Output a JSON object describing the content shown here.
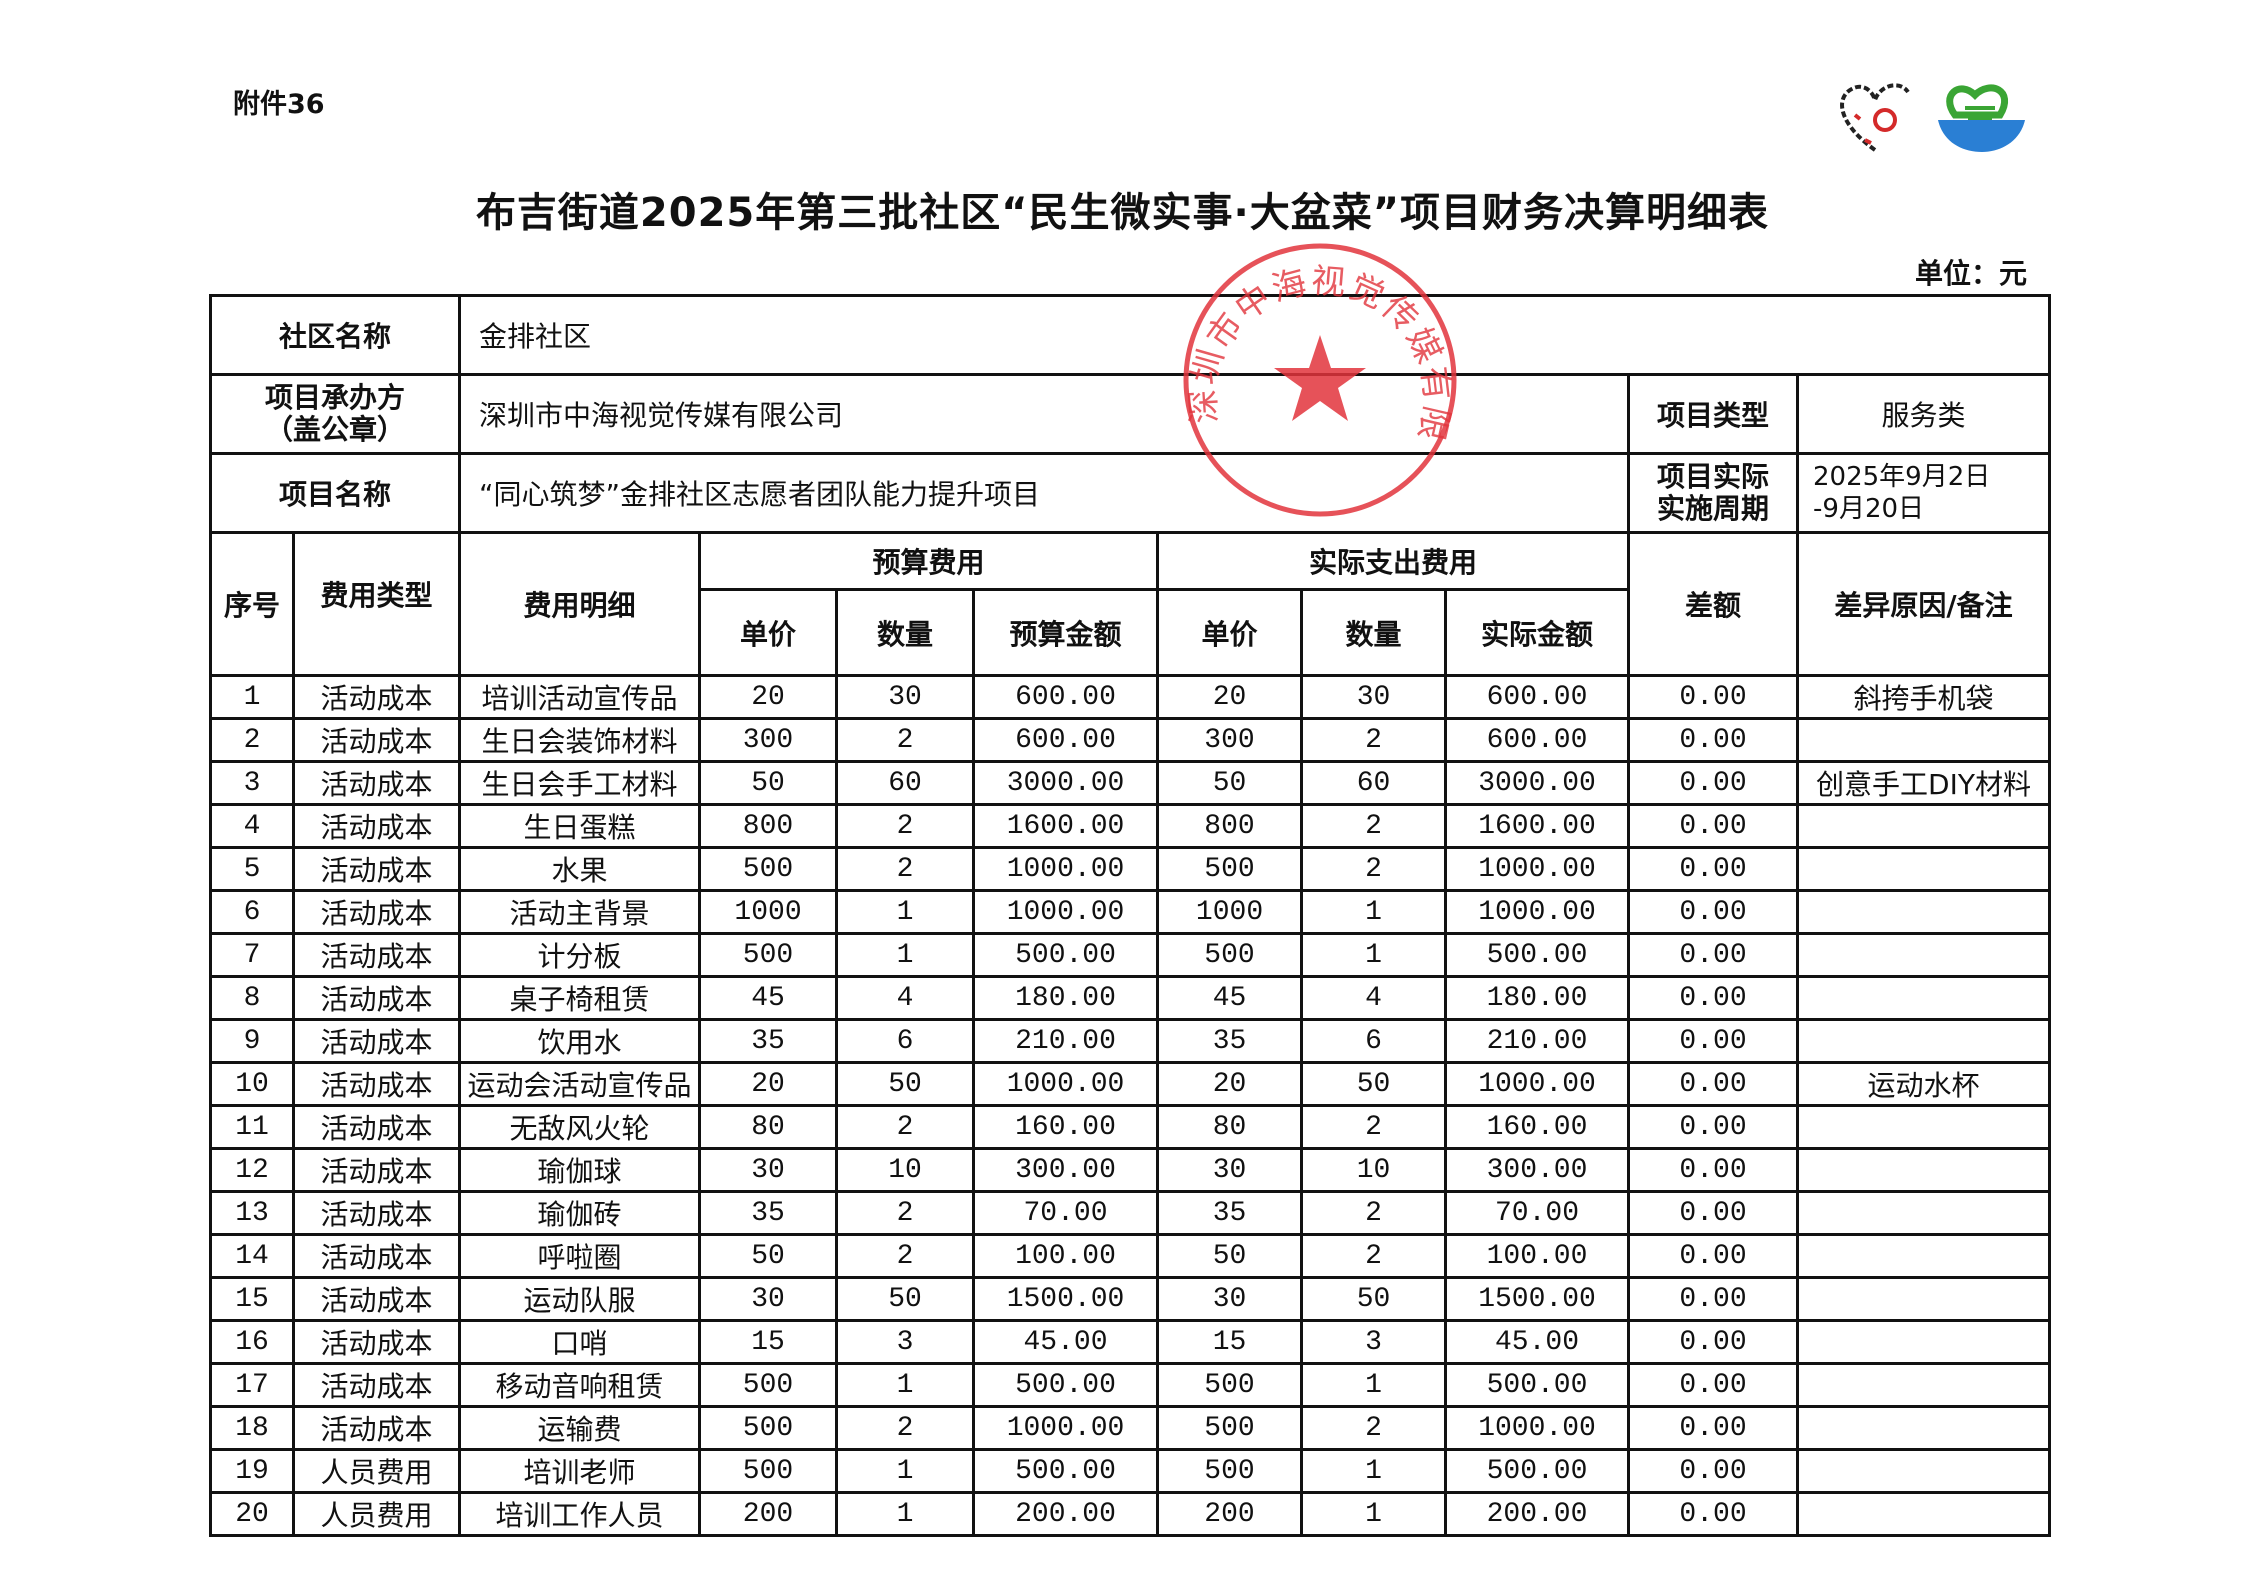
{
  "attachment": "附件36",
  "title": "布吉街道2025年第三批社区“民生微实事·大盆菜”项目财务决算明细表",
  "unit": "单位：元",
  "logos": {
    "left": "party-heart-logo",
    "right": "community-bowl-logo",
    "colors": {
      "green": "#3aa534",
      "blue": "#2a7fd4",
      "red": "#d42a2a"
    }
  },
  "stamp": {
    "text": "深圳市中海视觉传媒有限公司",
    "color": "#e2343c"
  },
  "info": {
    "community_label": "社区名称",
    "community_value": "金排社区",
    "organizer_label_1": "项目承办方",
    "organizer_label_2": "（盖公章）",
    "organizer_value": "深圳市中海视觉传媒有限公司",
    "type_label": "项目类型",
    "type_value": "服务类",
    "name_label": "项目名称",
    "name_value": "“同心筑梦”金排社区志愿者团队能力提升项目",
    "period_label_1": "项目实际",
    "period_label_2": "实施周期",
    "period_value_1": "2025年9月2日",
    "period_value_2": "-9月20日"
  },
  "headers": {
    "seq": "序号",
    "category": "费用类型",
    "detail": "费用明细",
    "budget": "预算费用",
    "actual": "实际支出费用",
    "unit_price": "单价",
    "quantity": "数量",
    "budget_amount": "预算金额",
    "actual_unit_price": "单价",
    "actual_quantity": "数量",
    "actual_amount": "实际金额",
    "difference": "差额",
    "remark": "差异原因/备注"
  },
  "rows": [
    [
      "1",
      "活动成本",
      "培训活动宣传品",
      "20",
      "30",
      "600.00",
      "20",
      "30",
      "600.00",
      "0.00",
      "斜挎手机袋"
    ],
    [
      "2",
      "活动成本",
      "生日会装饰材料",
      "300",
      "2",
      "600.00",
      "300",
      "2",
      "600.00",
      "0.00",
      ""
    ],
    [
      "3",
      "活动成本",
      "生日会手工材料",
      "50",
      "60",
      "3000.00",
      "50",
      "60",
      "3000.00",
      "0.00",
      "创意手工DIY材料"
    ],
    [
      "4",
      "活动成本",
      "生日蛋糕",
      "800",
      "2",
      "1600.00",
      "800",
      "2",
      "1600.00",
      "0.00",
      ""
    ],
    [
      "5",
      "活动成本",
      "水果",
      "500",
      "2",
      "1000.00",
      "500",
      "2",
      "1000.00",
      "0.00",
      ""
    ],
    [
      "6",
      "活动成本",
      "活动主背景",
      "1000",
      "1",
      "1000.00",
      "1000",
      "1",
      "1000.00",
      "0.00",
      ""
    ],
    [
      "7",
      "活动成本",
      "计分板",
      "500",
      "1",
      "500.00",
      "500",
      "1",
      "500.00",
      "0.00",
      ""
    ],
    [
      "8",
      "活动成本",
      "桌子椅租赁",
      "45",
      "4",
      "180.00",
      "45",
      "4",
      "180.00",
      "0.00",
      ""
    ],
    [
      "9",
      "活动成本",
      "饮用水",
      "35",
      "6",
      "210.00",
      "35",
      "6",
      "210.00",
      "0.00",
      ""
    ],
    [
      "10",
      "活动成本",
      "运动会活动宣传品",
      "20",
      "50",
      "1000.00",
      "20",
      "50",
      "1000.00",
      "0.00",
      "运动水杯"
    ],
    [
      "11",
      "活动成本",
      "无敌风火轮",
      "80",
      "2",
      "160.00",
      "80",
      "2",
      "160.00",
      "0.00",
      ""
    ],
    [
      "12",
      "活动成本",
      "瑜伽球",
      "30",
      "10",
      "300.00",
      "30",
      "10",
      "300.00",
      "0.00",
      ""
    ],
    [
      "13",
      "活动成本",
      "瑜伽砖",
      "35",
      "2",
      "70.00",
      "35",
      "2",
      "70.00",
      "0.00",
      ""
    ],
    [
      "14",
      "活动成本",
      "呼啦圈",
      "50",
      "2",
      "100.00",
      "50",
      "2",
      "100.00",
      "0.00",
      ""
    ],
    [
      "15",
      "活动成本",
      "运动队服",
      "30",
      "50",
      "1500.00",
      "30",
      "50",
      "1500.00",
      "0.00",
      ""
    ],
    [
      "16",
      "活动成本",
      "口哨",
      "15",
      "3",
      "45.00",
      "15",
      "3",
      "45.00",
      "0.00",
      ""
    ],
    [
      "17",
      "活动成本",
      "移动音响租赁",
      "500",
      "1",
      "500.00",
      "500",
      "1",
      "500.00",
      "0.00",
      ""
    ],
    [
      "18",
      "活动成本",
      "运输费",
      "500",
      "2",
      "1000.00",
      "500",
      "2",
      "1000.00",
      "0.00",
      ""
    ],
    [
      "19",
      "人员费用",
      "培训老师",
      "500",
      "1",
      "500.00",
      "500",
      "1",
      "500.00",
      "0.00",
      ""
    ],
    [
      "20",
      "人员费用",
      "培训工作人员",
      "200",
      "1",
      "200.00",
      "200",
      "1",
      "200.00",
      "0.00",
      ""
    ]
  ]
}
